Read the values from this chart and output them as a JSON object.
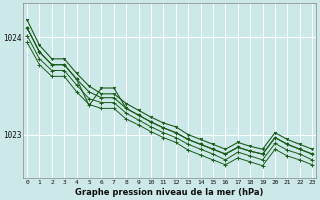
{
  "title": "Graphe pression niveau de la mer (hPa)",
  "bg_color": "#cce8e8",
  "grid_color": "#ffffff",
  "line_color": "#1a5c1a",
  "marker_color": "#1a5c1a",
  "x_ticks": [
    0,
    1,
    2,
    3,
    4,
    5,
    6,
    7,
    8,
    9,
    10,
    11,
    12,
    13,
    14,
    15,
    16,
    17,
    18,
    19,
    20,
    21,
    22,
    23
  ],
  "y_ticks": [
    1023,
    1024
  ],
  "ylim": [
    1022.55,
    1024.35
  ],
  "xlim": [
    -0.3,
    23.3
  ],
  "series": [
    [
      1024.18,
      1023.92,
      1023.78,
      1023.78,
      1023.63,
      1023.5,
      1023.42,
      1023.42,
      1023.32,
      1023.25,
      1023.18,
      1023.12,
      1023.08,
      1023.0,
      1022.95,
      1022.9,
      1022.85,
      1022.92,
      1022.88,
      1022.85,
      1023.02,
      1022.95,
      1022.9,
      1022.85
    ],
    [
      1024.1,
      1023.85,
      1023.72,
      1023.72,
      1023.57,
      1023.44,
      1023.38,
      1023.38,
      1023.27,
      1023.2,
      1023.13,
      1023.07,
      1023.02,
      1022.95,
      1022.9,
      1022.85,
      1022.8,
      1022.87,
      1022.83,
      1022.8,
      1022.97,
      1022.9,
      1022.85,
      1022.8
    ],
    [
      1024.02,
      1023.78,
      1023.66,
      1023.66,
      1023.51,
      1023.37,
      1023.33,
      1023.33,
      1023.22,
      1023.15,
      1023.08,
      1023.02,
      1022.97,
      1022.9,
      1022.85,
      1022.8,
      1022.74,
      1022.82,
      1022.78,
      1022.74,
      1022.91,
      1022.84,
      1022.8,
      1022.74
    ],
    [
      1023.95,
      1023.72,
      1023.6,
      1023.6,
      1023.44,
      1023.31,
      1023.27,
      1023.27,
      1023.16,
      1023.1,
      1023.03,
      1022.97,
      1022.92,
      1022.84,
      1022.79,
      1022.74,
      1022.69,
      1022.76,
      1022.72,
      1022.68,
      1022.85,
      1022.78,
      1022.74,
      1022.69
    ]
  ],
  "series_with_zigzag": {
    "index": 1,
    "zigzag_x": [
      5,
      6,
      7,
      8,
      9,
      10
    ],
    "zigzag_y": [
      1023.44,
      1023.22,
      1023.38,
      1023.38,
      1023.1,
      1022.95
    ]
  }
}
